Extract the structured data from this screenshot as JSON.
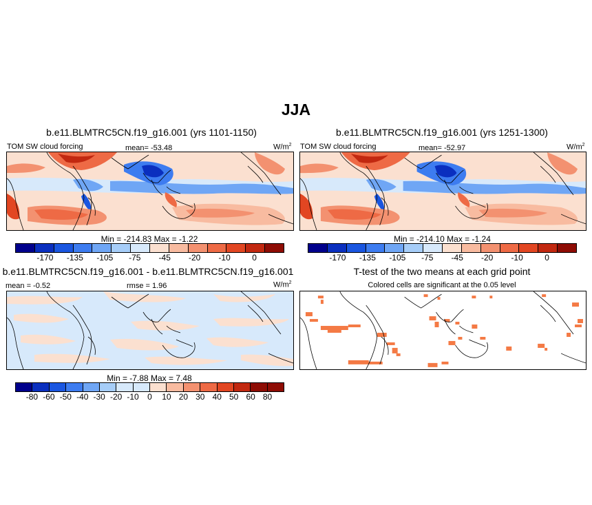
{
  "season": "JJA",
  "panel1": {
    "title": "b.e11.BLMTRC5CN.f19_g16.001 (yrs 1101-1150)",
    "variable": "TOM SW cloud forcing",
    "mean": "mean= -53.48",
    "units": "W/m",
    "units_sup": "2",
    "minmax": "Min = -214.83 Max = -1.22"
  },
  "panel2": {
    "title": "b.e11.BLMTRC5CN.f19_g16.001 (yrs 1251-1300)",
    "variable": "TOM SW cloud forcing",
    "mean": "mean= -52.97",
    "units": "W/m",
    "units_sup": "2",
    "minmax": "Min = -214.10 Max = -1.24"
  },
  "panel3": {
    "title": "b.e11.BLMTRC5CN.f19_g16.001 - b.e11.BLMTRC5CN.f19_g16.001",
    "mean": "mean = -0.52",
    "rmse": "rmse = 1.96",
    "units": "W/m",
    "units_sup": "2",
    "minmax": "Min = -7.88 Max = 7.48"
  },
  "panel4": {
    "title": "T-test of the two means at each grid point",
    "subtitle": "Colored cells are significant at the 0.05 level"
  },
  "colorbar_abs": {
    "ticks": [
      "-170",
      "-135",
      "-105",
      "-75",
      "-45",
      "-20",
      "-10",
      "0"
    ],
    "colors": [
      "#00008c",
      "#0a2fbf",
      "#1a56e0",
      "#3d7cf0",
      "#6fa6f5",
      "#a6cdf8",
      "#d7e9fb",
      "#fbe0d0",
      "#f8bba0",
      "#f39170",
      "#ee6a45",
      "#e24622",
      "#c22810",
      "#8e0c04"
    ]
  },
  "colorbar_diff": {
    "ticks": [
      "-80",
      "-60",
      "-50",
      "-40",
      "-30",
      "-20",
      "-10",
      "0",
      "10",
      "20",
      "30",
      "40",
      "50",
      "60",
      "80"
    ],
    "colors": [
      "#00008c",
      "#0a2fbf",
      "#1a56e0",
      "#3d7cf0",
      "#6fa6f5",
      "#a6cdf8",
      "#d7e9fb",
      "#d7e9fb",
      "#fbe0d0",
      "#f8bba0",
      "#f39170",
      "#ee6a45",
      "#e24622",
      "#c22810",
      "#8e0c04",
      "#8e0c04"
    ]
  },
  "colors": {
    "cell_significant": "#f47a45",
    "land_outline": "#000000"
  }
}
